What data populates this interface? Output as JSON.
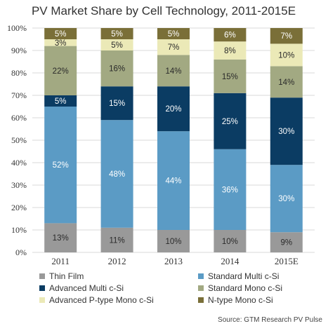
{
  "chart_data": {
    "type": "bar",
    "stacked": true,
    "title": "PV Market Share by Cell Technology, 2011-2015E",
    "categories": [
      "2011",
      "2012",
      "2013",
      "2014",
      "2015E"
    ],
    "y_ticks": [
      "0%",
      "10%",
      "20%",
      "30%",
      "40%",
      "50%",
      "60%",
      "70%",
      "80%",
      "90%",
      "100%"
    ],
    "ylim": [
      0,
      100
    ],
    "grid": true,
    "legend_position": "bottom",
    "series": [
      {
        "name": "Thin Film",
        "color": "#999999",
        "label_color": "#2a2a2a",
        "values": [
          13,
          11,
          10,
          10,
          9
        ],
        "labels": [
          "13%",
          "11%",
          "10%",
          "10%",
          "9%"
        ]
      },
      {
        "name": "Standard Multi c-Si",
        "color": "#5b9bc5",
        "label_color": "#ffffff",
        "values": [
          52,
          48,
          44,
          36,
          30
        ],
        "labels": [
          "52%",
          "48%",
          "44%",
          "36%",
          "30%"
        ]
      },
      {
        "name": "Advanced Multi c-Si",
        "color": "#0b3c63",
        "label_color": "#ffffff",
        "values": [
          5,
          15,
          20,
          25,
          30
        ],
        "labels": [
          "5%",
          "15%",
          "20%",
          "25%",
          "30%"
        ]
      },
      {
        "name": "Standard Mono c-Si",
        "color": "#a2a982",
        "label_color": "#2a2a2a",
        "values": [
          22,
          16,
          14,
          15,
          14
        ],
        "labels": [
          "22%",
          "16%",
          "14%",
          "15%",
          "14%"
        ]
      },
      {
        "name": "Advanced P-type Mono c-Si",
        "color": "#ebe9b7",
        "label_color": "#2a2a2a",
        "values": [
          3,
          5,
          7,
          8,
          10
        ],
        "labels": [
          "3%",
          "5%",
          "7%",
          "8%",
          "10%"
        ]
      },
      {
        "name": "N-type Mono c-Si",
        "color": "#7a6f38",
        "label_color": "#ffffff",
        "values": [
          5,
          5,
          5,
          6,
          7
        ],
        "labels": [
          "5%",
          "5%",
          "5%",
          "6%",
          "7%"
        ]
      }
    ],
    "source": "Source: GTM Research PV Pulse"
  }
}
